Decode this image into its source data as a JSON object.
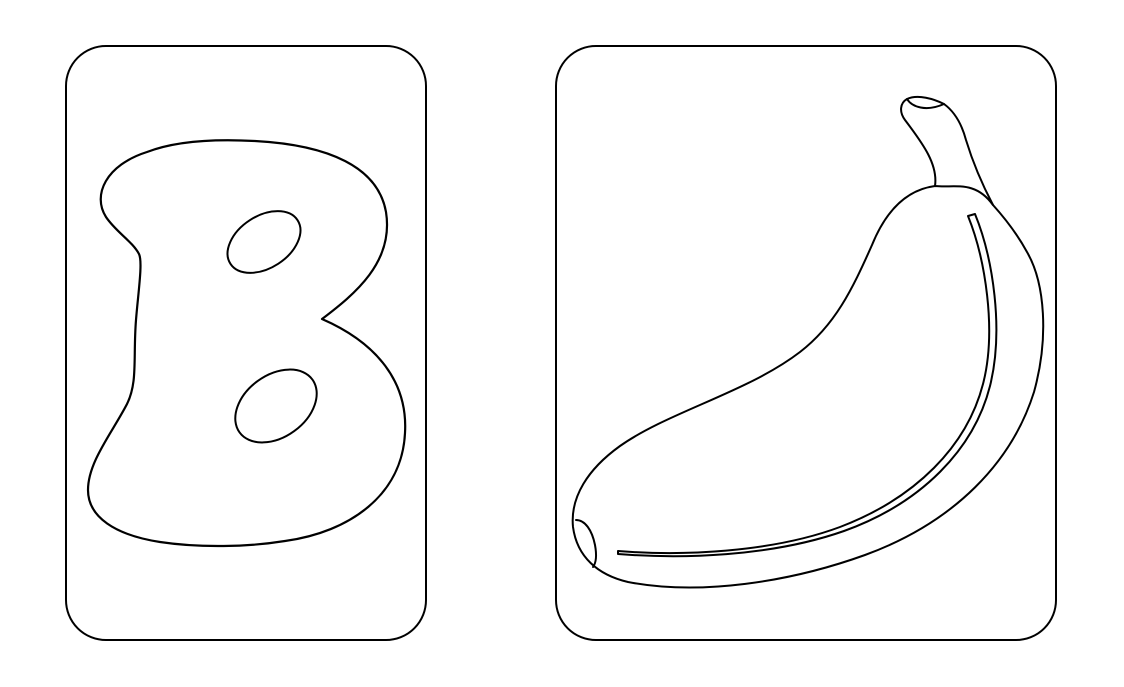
{
  "page": {
    "background": "#ffffff",
    "line_color": "#000000"
  },
  "cards": [
    {
      "subject": "letter-b-outline"
    },
    {
      "subject": "banana-outline"
    }
  ]
}
